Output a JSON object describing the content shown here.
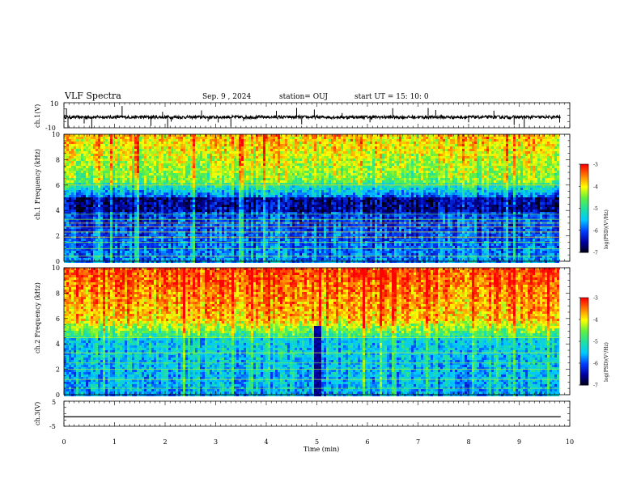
{
  "header": {
    "title": "VLF Spectra",
    "date": "Sep. 9 , 2024",
    "station": "station= OUJ",
    "start": "start  UT =   15: 10: 0"
  },
  "chart_data": {
    "type": "heatmap",
    "xlabel": "Time  (min)",
    "xlim": [
      0,
      10
    ],
    "xticks": [
      "0",
      "1",
      "2",
      "3",
      "4",
      "5",
      "6",
      "7",
      "8",
      "9",
      "10"
    ],
    "data_end_min": 9.82,
    "panels": [
      {
        "id": "ch1-waveform",
        "type": "line",
        "ylabel": "ch.1(V)",
        "ylim": [
          -10,
          10
        ],
        "ytick_labels": [
          "10",
          "-10"
        ],
        "baseline": -1.5,
        "trace_color": "#000000",
        "spikes_min": [
          0.05,
          0.08,
          0.4,
          0.55,
          1.15,
          1.72,
          1.95,
          2.05,
          2.12,
          2.72,
          2.85,
          3.05,
          3.3,
          3.55,
          4.2,
          4.6,
          4.7,
          4.95,
          5.5,
          6.05,
          6.5,
          7.2,
          7.35,
          8.0,
          8.5,
          8.9,
          9.1,
          9.8
        ]
      },
      {
        "id": "ch1-spectrogram",
        "type": "heatmap",
        "ylabel": "ch.1  Frequency  (kHz)",
        "ylim": [
          0,
          10
        ],
        "yticks": [
          "0",
          "2",
          "4",
          "6",
          "8",
          "10"
        ],
        "colorbar": {
          "label": "log(PSD)(V²/Hz)",
          "range": [
            -7,
            -3
          ],
          "ticks": [
            "-3",
            "-4",
            "-5",
            "-6",
            "-7"
          ]
        }
      },
      {
        "id": "ch2-spectrogram",
        "type": "heatmap",
        "ylabel": "ch.2  Frequency  (kHz)",
        "ylim": [
          0,
          10
        ],
        "yticks": [
          "0",
          "2",
          "4",
          "6",
          "8",
          "10"
        ],
        "colorbar": {
          "label": "log(PSD)(V²/Hz)",
          "range": [
            -7,
            -3
          ],
          "ticks": [
            "-3",
            "-4",
            "-5",
            "-6",
            "-7"
          ]
        }
      },
      {
        "id": "ch3-waveform",
        "type": "line",
        "ylabel": "ch.3(V)",
        "ylim": [
          -5,
          5
        ],
        "ytick_labels": [
          "5",
          "-5"
        ],
        "baseline": -1.2,
        "trace_color": "#000000"
      }
    ],
    "colormap": [
      "#000010",
      "#0000a0",
      "#0040ff",
      "#00c8ff",
      "#20e0a0",
      "#60f040",
      "#ffff00",
      "#ff8000",
      "#ff0000",
      "#ffffff"
    ]
  }
}
